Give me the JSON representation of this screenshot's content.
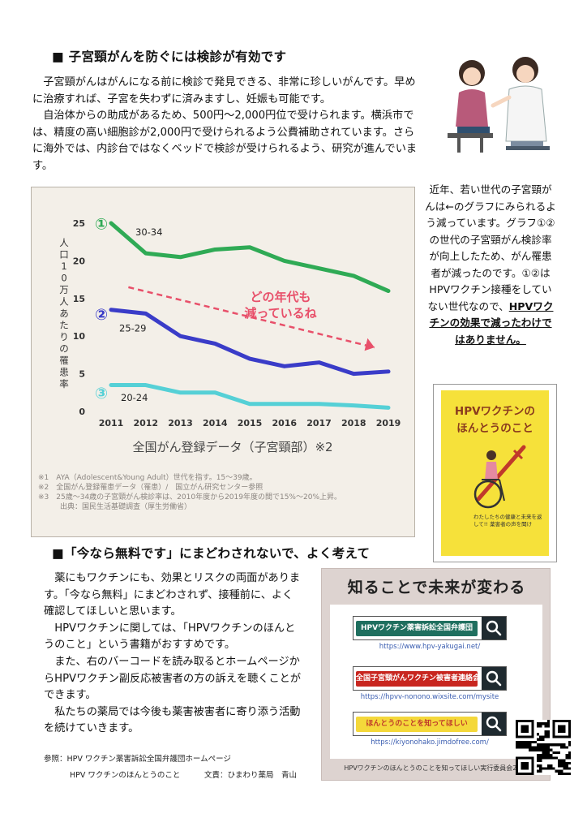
{
  "section1": {
    "heading": "■ 子宮頸がんを防ぐには検診が有効です",
    "paragraphs": [
      "子宮頸がんはがんになる前に検診で発見できる、非常に珍しいがんです。早めに治療すれば、子宮を失わずに済みますし、妊娠も可能です。",
      "自治体からの助成があるため、500円～2,000円位で受けられます。横浜市では、精度の高い細胞診が2,000円で受けられるよう公費補助されています。さらに海外では、内診台ではなくベッドで検診が受けられるよう、研究が進んでいます。"
    ]
  },
  "chart_data": {
    "type": "line",
    "title": "",
    "x": [
      2011,
      2012,
      2013,
      2014,
      2015,
      2016,
      2017,
      2018,
      2019
    ],
    "xlabel": "全国がん登録データ（子宮頸部）※2",
    "ylabel": "人口10万人あたりの罹患率",
    "ylim": [
      0,
      25
    ],
    "yticks": [
      0,
      5,
      10,
      15,
      20,
      25
    ],
    "grid": false,
    "series": [
      {
        "marker": "①",
        "name": "30-34",
        "color": "#2faa55",
        "values": [
          25,
          21,
          20.5,
          21.5,
          21.8,
          20,
          19,
          18,
          16
        ]
      },
      {
        "marker": "②",
        "name": "25-29",
        "color": "#3a3cc8",
        "values": [
          13.5,
          13,
          10,
          9,
          7,
          6,
          6.5,
          5,
          5.3
        ]
      },
      {
        "marker": "③",
        "name": "20-24",
        "color": "#55d0d6",
        "values": [
          3.5,
          3.5,
          2.5,
          2.5,
          1,
          1,
          1,
          0.8,
          0.5
        ]
      }
    ],
    "annotation": "どの年代も\n減っているね",
    "trend_color": "#e8506a"
  },
  "chart_notes": [
    "※1　AYA（Adolescent&Young Adult）世代を指す。15～39歳。",
    "※2　全国がん登録罹患データ（罹患）/　国立がん研究センター参照",
    "※3　25歳～34歳の子宮頸がん検診率は、2010年度から2019年度の間で15%～20%上昇。",
    "　　　出典：国民生活基礎調査（厚生労働省）"
  ],
  "side_text": {
    "plain": "近年、若い世代の子宮頸がんは←のグラフにみられるよう減っています。グラフ①②の世代の子宮頸がん検診率が向上したため、がん罹患者が減ったのです。①②はHPVワクチン接種をしていない世代なので、",
    "emphasis": "HPVワクチンの効果で減ったわけではありません。"
  },
  "book": {
    "title_line1": "HPVワクチンの",
    "title_line2": "ほんとうのこと",
    "subtitle": "わたしたちの健康と未来を返して!! 薬害者の声を聞け",
    "bg_color": "#f6e13a"
  },
  "section2": {
    "heading": "■「今なら無料です」にまどわされないで、よく考えて",
    "paragraphs": [
      "薬にもワクチンにも、効果とリスクの両面があります。「今なら無料」にまどわされず、接種前に、よく確認してほしいと思います。",
      "HPVワクチンに関しては、「HPVワクチンのほんとうのこと」という書籍がおすすめです。",
      "また、右のバーコードを読み取るとホームページからHPVワクチン副反応被害者の方の訴えを聴くことができます。",
      "私たちの薬局では今後も薬害被害者に寄り添う活動を続けていきます。"
    ]
  },
  "know_box": {
    "title": "知ることで未来が変わる",
    "links": [
      {
        "label": "HPVワクチン薬害訴訟全国弁護団",
        "url": "https://www.hpv-yakugai.net/",
        "bg": "#1f6f5f",
        "fg": "#ffffff"
      },
      {
        "label": "全国子宮頸がんワクチン被害者連絡会",
        "url": "https://hpvv-nonono.wixsite.com/mysite",
        "bg": "#c8261f",
        "fg": "#ffffff"
      },
      {
        "label": "ほんとうのことを知ってほしい",
        "url": "https://kiyonohako.jimdofree.com/",
        "bg": "#f4d83a",
        "fg": "#c0392b"
      }
    ],
    "footer": "HPVワクチンのほんとうのことを知ってほしい実行委員会2024"
  },
  "references": {
    "line1": "参照：HPV ワクチン薬害訴訟全国弁護団ホームページ",
    "line2": "HPV ワクチンのほんとうのこと",
    "credit": "文責：ひまわり薬局　青山"
  }
}
